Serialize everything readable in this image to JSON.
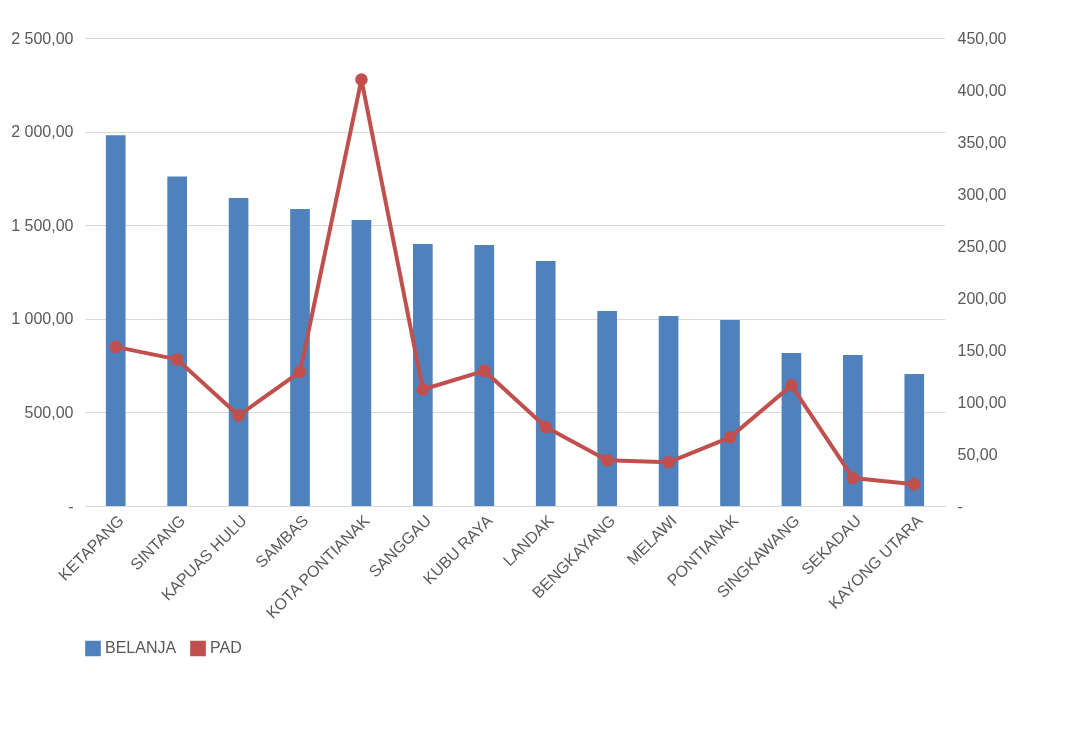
{
  "chart_data": {
    "type": "bar",
    "categories": [
      "KETAPANG",
      "SINTANG",
      "KAPUAS HULU",
      "SAMBAS",
      "KOTA PONTIANAK",
      "SANGGAU",
      "KUBU RAYA",
      "LANDAK",
      "BENGKAYANG",
      "MELAWI",
      "PONTIANAK",
      "SINGKAWANG",
      "SEKADAU",
      "KAYONG UTARA"
    ],
    "series": [
      {
        "name": "BELANJA",
        "color": "#4f81bd",
        "values": [
          1980,
          1760,
          1645,
          1587,
          1528,
          1400,
          1394,
          1309,
          1042,
          1015,
          994,
          817,
          807,
          705
        ]
      },
      {
        "name": "PAD",
        "type": "line",
        "axis": "y2",
        "color": "#c0504d",
        "values": [
          153,
          141,
          87,
          129,
          410,
          112,
          130,
          76,
          44,
          42,
          66,
          116,
          27,
          21
        ]
      }
    ],
    "ylim": [
      0,
      2500
    ],
    "yticks": [
      {
        "value": 0,
        "label": "-"
      },
      {
        "value": 500,
        "label": "500,00"
      },
      {
        "value": 1000,
        "label": "1 000,00"
      },
      {
        "value": 1500,
        "label": "1 500,00"
      },
      {
        "value": 2000,
        "label": "2 000,00"
      },
      {
        "value": 2500,
        "label": "2 500,00"
      }
    ],
    "y2lim": [
      0,
      450
    ],
    "y2ticks": [
      {
        "value": 0,
        "label": "-"
      },
      {
        "value": 50,
        "label": "50,00"
      },
      {
        "value": 100,
        "label": "100,00"
      },
      {
        "value": 150,
        "label": "150,00"
      },
      {
        "value": 200,
        "label": "200,00"
      },
      {
        "value": 250,
        "label": "250,00"
      },
      {
        "value": 300,
        "label": "300,00"
      },
      {
        "value": 350,
        "label": "350,00"
      },
      {
        "value": 400,
        "label": "400,00"
      },
      {
        "value": 450,
        "label": "450,00"
      }
    ],
    "grid": "y",
    "marker": "circle",
    "legend": "bottom"
  }
}
